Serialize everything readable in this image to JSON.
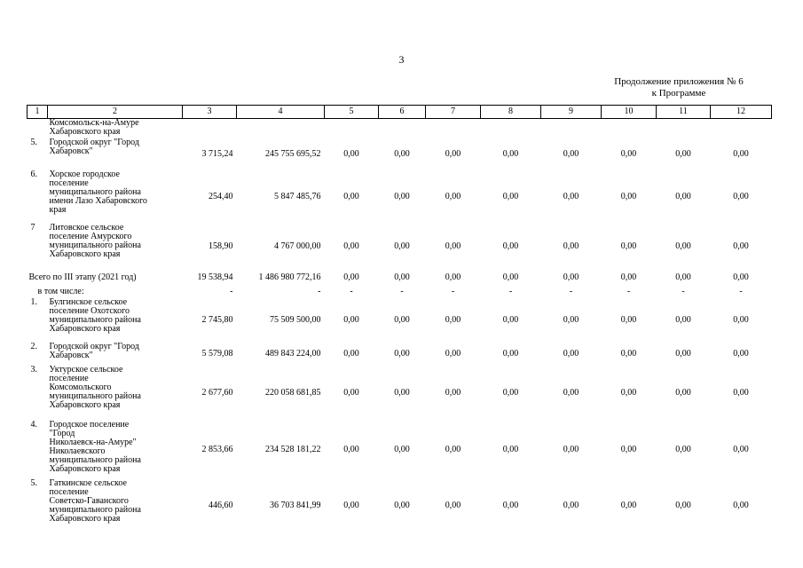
{
  "page_number": "3",
  "appendix": {
    "line1": "Продолжение приложения № 6",
    "line2": "к Программе"
  },
  "table": {
    "header": [
      "1",
      "2",
      "3",
      "4",
      "5",
      "6",
      "7",
      "8",
      "9",
      "10",
      "11",
      "12"
    ],
    "rows": [
      {
        "num": "",
        "name": "Комсомольск-на-Амуре\nХабаровского края",
        "cols": [
          "",
          "",
          "",
          "",
          "",
          "",
          "",
          "",
          "",
          ""
        ]
      },
      {
        "num": "5.",
        "name": "Городской округ \"Город\nХабаровск\"",
        "cols": [
          "3 715,24",
          "245 755 695,52",
          "0,00",
          "0,00",
          "0,00",
          "0,00",
          "0,00",
          "0,00",
          "0,00",
          "0,00"
        ]
      },
      {
        "num": "6.",
        "name": "Хорское городское\nпоселение\nмуниципального района\nимени Лазо Хабаровского\nкрая",
        "cols": [
          "254,40",
          "5 847 485,76",
          "0,00",
          "0,00",
          "0,00",
          "0,00",
          "0,00",
          "0,00",
          "0,00",
          "0,00"
        ]
      },
      {
        "num": "7",
        "name": "Литовское сельское\nпоселение Амурского\nмуниципального района\nХабаровского края",
        "cols": [
          "158,90",
          "4 767 000,00",
          "0,00",
          "0,00",
          "0,00",
          "0,00",
          "0,00",
          "0,00",
          "0,00",
          "0,00"
        ]
      },
      {
        "num": "",
        "name": "Всего по III этапу (2021 год)",
        "type": "total",
        "cols": [
          "19 538,94",
          "1 486 980 772,16",
          "0,00",
          "0,00",
          "0,00",
          "0,00",
          "0,00",
          "0,00",
          "0,00",
          "0,00"
        ]
      },
      {
        "num": "",
        "name": "в том числе:",
        "type": "sub",
        "cols": [
          "-",
          "-",
          "-",
          "-",
          "-",
          "-",
          "-",
          "-",
          "-",
          "-"
        ]
      },
      {
        "num": "1.",
        "name": "Булгинское сельское\nпоселение Охотского\nмуниципального района\nХабаровского края",
        "cols": [
          "2 745,80",
          "75 509 500,00",
          "0,00",
          "0,00",
          "0,00",
          "0,00",
          "0,00",
          "0,00",
          "0,00",
          "0,00"
        ]
      },
      {
        "num": "2.",
        "name": "Городской округ \"Город\nХабаровск\"",
        "cols": [
          "5 579,08",
          "489 843 224,00",
          "0,00",
          "0,00",
          "0,00",
          "0,00",
          "0,00",
          "0,00",
          "0,00",
          "0,00"
        ]
      },
      {
        "num": "3.",
        "name": "Уктурское сельское\nпоселение\nКомсомольского\nмуниципального района\nХабаровского края",
        "cols": [
          "2 677,60",
          "220 058 681,85",
          "0,00",
          "0,00",
          "0,00",
          "0,00",
          "0,00",
          "0,00",
          "0,00",
          "0,00"
        ]
      },
      {
        "num": "4.",
        "name": "Городское поселение\n\"Город\nНиколаевск-на-Амуре\"\nНиколаевского\nмуниципального района\nХабаровского края",
        "cols": [
          "2 853,66",
          "234 528 181,22",
          "0,00",
          "0,00",
          "0,00",
          "0,00",
          "0,00",
          "0,00",
          "0,00",
          "0,00"
        ]
      },
      {
        "num": "5.",
        "name": "Гаткинское сельское\nпоселение\nСоветско-Гаванского\nмуниципального района\nХабаровского края",
        "cols": [
          "446,60",
          "36 703 841,99",
          "0,00",
          "0,00",
          "0,00",
          "0,00",
          "0,00",
          "0,00",
          "0,00",
          "0,00"
        ]
      }
    ]
  }
}
